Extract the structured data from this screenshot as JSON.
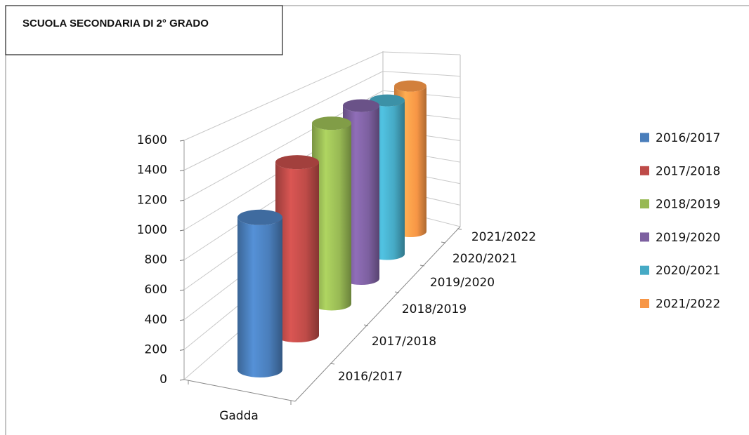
{
  "chart_data": {
    "type": "bar",
    "title": "SCUOLA SECONDARIA DI 2° GRADO",
    "categories": [
      "Gadda"
    ],
    "series": [
      {
        "name": "2016/2017",
        "color": "#4a7ebb",
        "values": [
          1050
        ]
      },
      {
        "name": "2017/2018",
        "color": "#be4b48",
        "values": [
          1270
        ]
      },
      {
        "name": "2018/2019",
        "color": "#98b954",
        "values": [
          1410
        ]
      },
      {
        "name": "2019/2020",
        "color": "#7d60a0",
        "values": [
          1450
        ]
      },
      {
        "name": "2020/2021",
        "color": "#46aac5",
        "values": [
          1390
        ]
      },
      {
        "name": "2021/2022",
        "color": "#f79646",
        "values": [
          1430
        ]
      }
    ],
    "ylim": [
      0,
      1600
    ],
    "yticks": [
      0,
      200,
      400,
      600,
      800,
      1000,
      1200,
      1400,
      1600
    ],
    "grid": true,
    "legend": "right"
  }
}
